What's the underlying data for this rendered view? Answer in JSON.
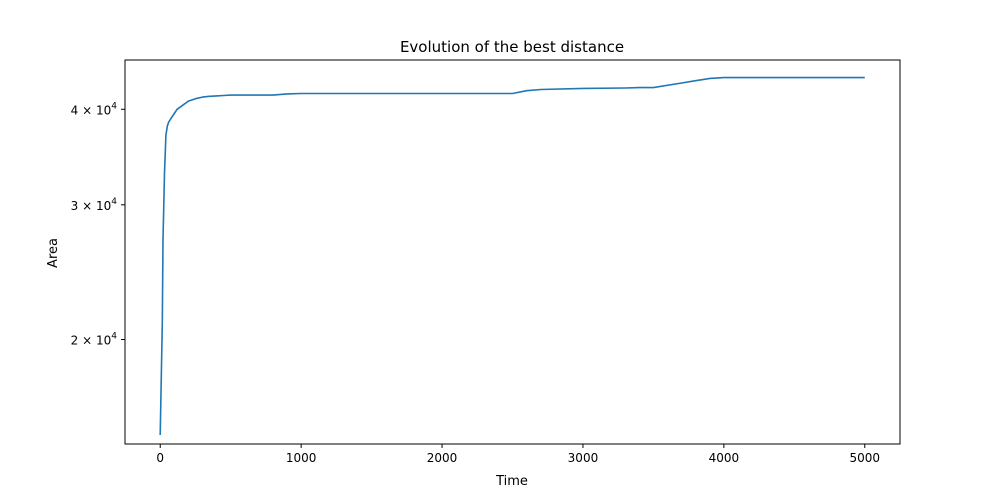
{
  "chart_data": {
    "type": "line",
    "title": "Evolution of the best distance",
    "xlabel": "Time",
    "ylabel": "Area",
    "xlim": [
      -250,
      5250
    ],
    "ylim": [
      14600,
      46400
    ],
    "yscale": "log",
    "grid": false,
    "line_color": "#1f77b4",
    "x_ticks": [
      {
        "value": 0,
        "label": "0"
      },
      {
        "value": 1000,
        "label": "1000"
      },
      {
        "value": 2000,
        "label": "2000"
      },
      {
        "value": 3000,
        "label": "3000"
      },
      {
        "value": 4000,
        "label": "4000"
      },
      {
        "value": 5000,
        "label": "5000"
      }
    ],
    "y_ticks": [
      {
        "value": 20000,
        "mantissa": "2",
        "base": "10",
        "exponent": "4"
      },
      {
        "value": 30000,
        "mantissa": "3",
        "base": "10",
        "exponent": "4"
      },
      {
        "value": 40000,
        "mantissa": "4",
        "base": "10",
        "exponent": "4"
      }
    ],
    "series": [
      {
        "x": [
          0,
          15,
          20,
          30,
          40,
          50,
          60,
          80,
          100,
          120,
          160,
          200,
          250,
          300,
          350,
          400,
          450,
          500,
          600,
          700,
          800,
          900,
          1000,
          1500,
          2000,
          2500,
          2600,
          2700,
          3000,
          3300,
          3400,
          3500,
          3700,
          3800,
          3900,
          4000,
          5000
        ],
        "y": [
          15000,
          21000,
          27000,
          33000,
          37000,
          38000,
          38500,
          39000,
          39500,
          40000,
          40500,
          41000,
          41300,
          41500,
          41600,
          41650,
          41700,
          41750,
          41750,
          41750,
          41750,
          41900,
          41950,
          41950,
          41950,
          41950,
          42300,
          42450,
          42600,
          42650,
          42700,
          42700,
          43300,
          43600,
          43900,
          44000,
          44000
        ]
      }
    ]
  }
}
